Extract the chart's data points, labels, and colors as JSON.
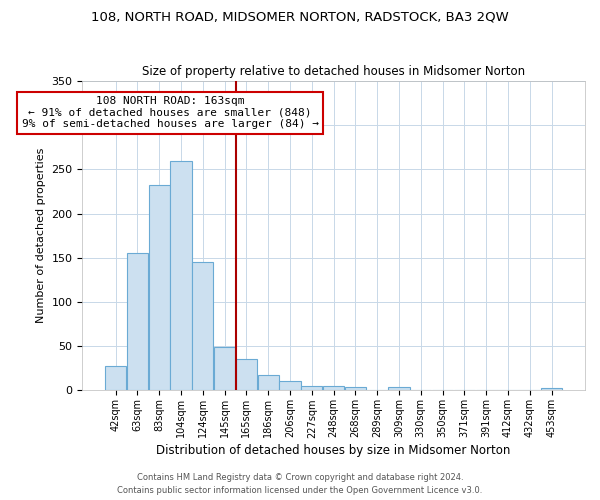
{
  "title": "108, NORTH ROAD, MIDSOMER NORTON, RADSTOCK, BA3 2QW",
  "subtitle": "Size of property relative to detached houses in Midsomer Norton",
  "xlabel": "Distribution of detached houses by size in Midsomer Norton",
  "ylabel": "Number of detached properties",
  "bar_labels": [
    "42sqm",
    "63sqm",
    "83sqm",
    "104sqm",
    "124sqm",
    "145sqm",
    "165sqm",
    "186sqm",
    "206sqm",
    "227sqm",
    "248sqm",
    "268sqm",
    "289sqm",
    "309sqm",
    "330sqm",
    "350sqm",
    "371sqm",
    "391sqm",
    "412sqm",
    "432sqm",
    "453sqm"
  ],
  "bar_values": [
    28,
    155,
    232,
    259,
    145,
    49,
    35,
    18,
    11,
    5,
    5,
    4,
    0,
    4,
    0,
    0,
    0,
    0,
    0,
    0,
    3
  ],
  "bar_color": "#cce0f0",
  "bar_edge_color": "#6aaad4",
  "vline_color": "#aa0000",
  "ylim": [
    0,
    350
  ],
  "yticks": [
    0,
    50,
    100,
    150,
    200,
    250,
    300,
    350
  ],
  "annotation_title": "108 NORTH ROAD: 163sqm",
  "annotation_line1": "← 91% of detached houses are smaller (848)",
  "annotation_line2": "9% of semi-detached houses are larger (84) →",
  "annotation_box_color": "#ffffff",
  "annotation_box_edge": "#cc0000",
  "footer1": "Contains HM Land Registry data © Crown copyright and database right 2024.",
  "footer2": "Contains public sector information licensed under the Open Government Licence v3.0.",
  "background_color": "#ffffff",
  "grid_color": "#c8d8e8"
}
